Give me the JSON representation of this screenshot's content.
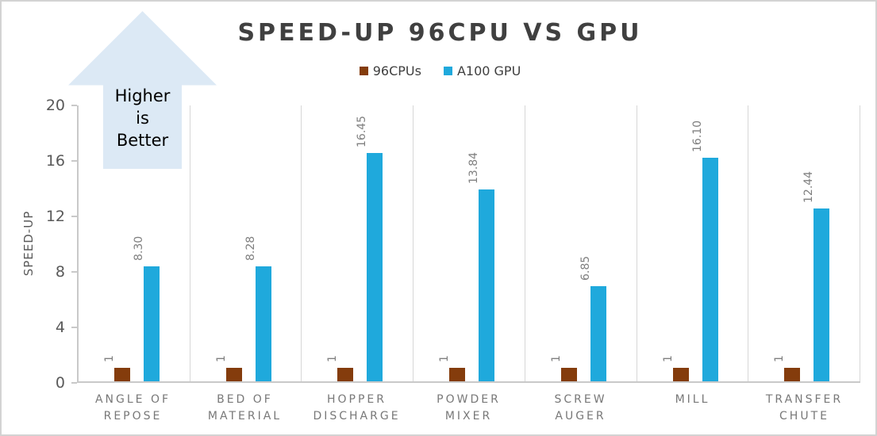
{
  "title": "SPEED-UP 96CPU VS GPU",
  "annotation": {
    "lines": [
      "Higher",
      "is",
      "Better"
    ],
    "arrow_color": "#dce9f5"
  },
  "legend": [
    {
      "label": "96CPUs",
      "color": "#843c0c"
    },
    {
      "label": "A100 GPU",
      "color": "#1fa9dc"
    }
  ],
  "colors": {
    "cpu_bar": "#843c0c",
    "gpu_bar": "#1fa9dc",
    "title_text": "#404040",
    "axis_text": "#595959",
    "data_label_text": "#7f7f7f",
    "gridline": "#d7d7d7",
    "window_border": "#d3d3d3"
  },
  "chart_data": {
    "type": "bar",
    "title": "SPEED-UP 96CPU VS GPU",
    "categories": [
      "ANGLE OF REPOSE",
      "BED OF MATERIAL",
      "HOPPER DISCHARGE",
      "POWDER MIXER",
      "SCREW AUGER",
      "MILL",
      "TRANSFER CHUTE"
    ],
    "category_display_lines": [
      [
        "ANGLE OF",
        "REPOSE"
      ],
      [
        "BED OF",
        "MATERIAL"
      ],
      [
        "HOPPER",
        "DISCHARGE"
      ],
      [
        "POWDER",
        "MIXER"
      ],
      [
        "SCREW",
        "AUGER"
      ],
      [
        "MILL"
      ],
      [
        "TRANSFER",
        "CHUTE"
      ]
    ],
    "series": [
      {
        "name": "96CPUs",
        "color": "#843c0c",
        "values": [
          1,
          1,
          1,
          1,
          1,
          1,
          1
        ],
        "labels": [
          "1",
          "1",
          "1",
          "1",
          "1",
          "1",
          "1"
        ]
      },
      {
        "name": "A100 GPU",
        "color": "#1fa9dc",
        "values": [
          8.3,
          8.28,
          16.45,
          13.84,
          6.85,
          16.1,
          12.44
        ],
        "labels": [
          "8.30",
          "8.28",
          "16.45",
          "13.84",
          "6.85",
          "16.10",
          "12.44"
        ]
      }
    ],
    "xlabel": "",
    "ylabel": "SPEED-UP",
    "ylim": [
      0,
      20
    ],
    "yticks": [
      0,
      4,
      8,
      12,
      16,
      20
    ],
    "legend_position": "top",
    "grid": "vertical-category-separators",
    "data_label_rotation": -90
  }
}
